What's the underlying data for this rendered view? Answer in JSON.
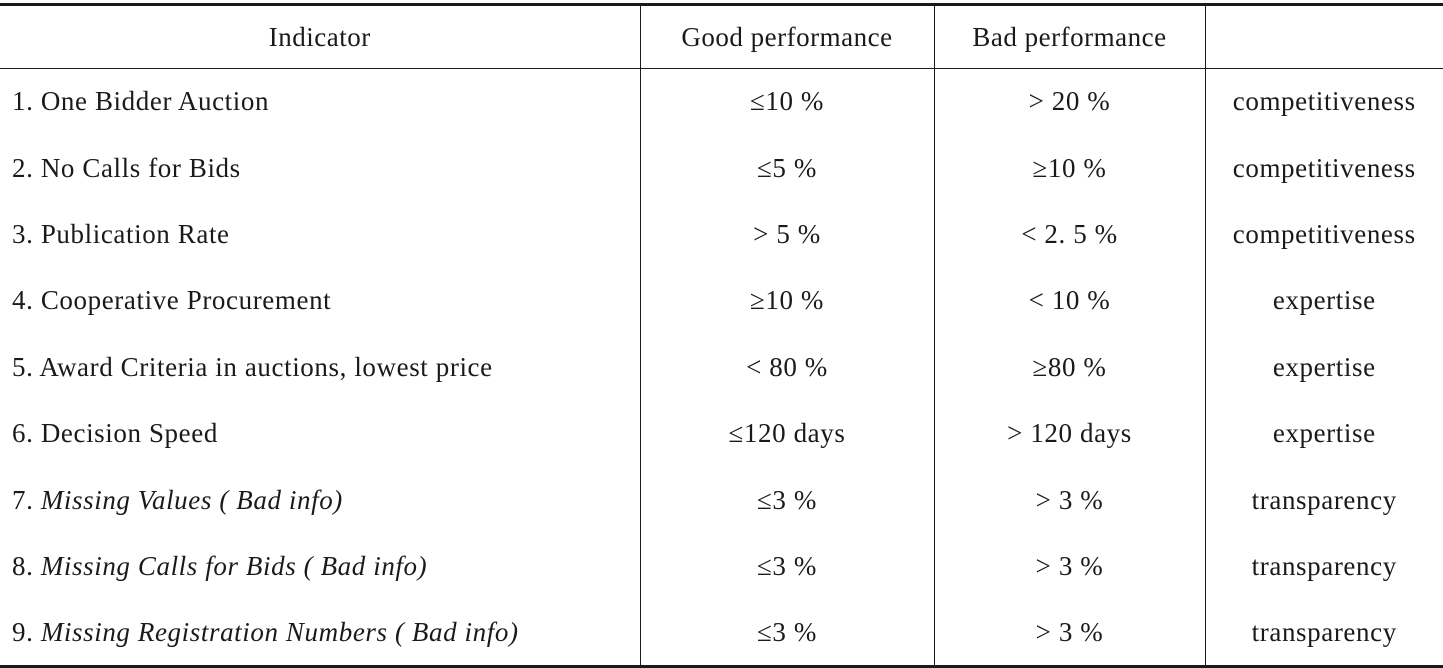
{
  "table": {
    "headers": [
      "Indicator",
      "Good performance",
      "Bad performance",
      ""
    ],
    "rows": [
      {
        "num": "1.",
        "label": "One Bidder Auction",
        "italic": false,
        "good": "≤10 %",
        "bad": "> 20 %",
        "category": "competitiveness"
      },
      {
        "num": "2.",
        "label": "No Calls for Bids",
        "italic": false,
        "good": "≤5 %",
        "bad": "≥10 %",
        "category": "competitiveness"
      },
      {
        "num": "3.",
        "label": "Publication Rate",
        "italic": false,
        "good": "> 5 %",
        "bad": "< 2. 5 %",
        "category": "competitiveness"
      },
      {
        "num": "4.",
        "label": "Cooperative Procurement",
        "italic": false,
        "good": "≥10 %",
        "bad": "< 10 %",
        "category": "expertise"
      },
      {
        "num": "5.",
        "label": "Award Criteria in auctions, lowest price",
        "italic": false,
        "good": "< 80 %",
        "bad": "≥80 %",
        "category": "expertise"
      },
      {
        "num": "6.",
        "label": "Decision Speed",
        "italic": false,
        "good": "≤120 days",
        "bad": "> 120 days",
        "category": "expertise"
      },
      {
        "num": "7.",
        "label": "Missing Values ( Bad info)",
        "italic": true,
        "good": "≤3 %",
        "bad": "> 3 %",
        "category": "transparency"
      },
      {
        "num": "8.",
        "label": "Missing Calls for Bids ( Bad info)",
        "italic": true,
        "good": "≤3 %",
        "bad": "> 3 %",
        "category": "transparency"
      },
      {
        "num": "9.",
        "label": "Missing Registration Numbers ( Bad info)",
        "italic": true,
        "good": "≤3 %",
        "bad": "> 3 %",
        "category": "transparency"
      }
    ]
  }
}
